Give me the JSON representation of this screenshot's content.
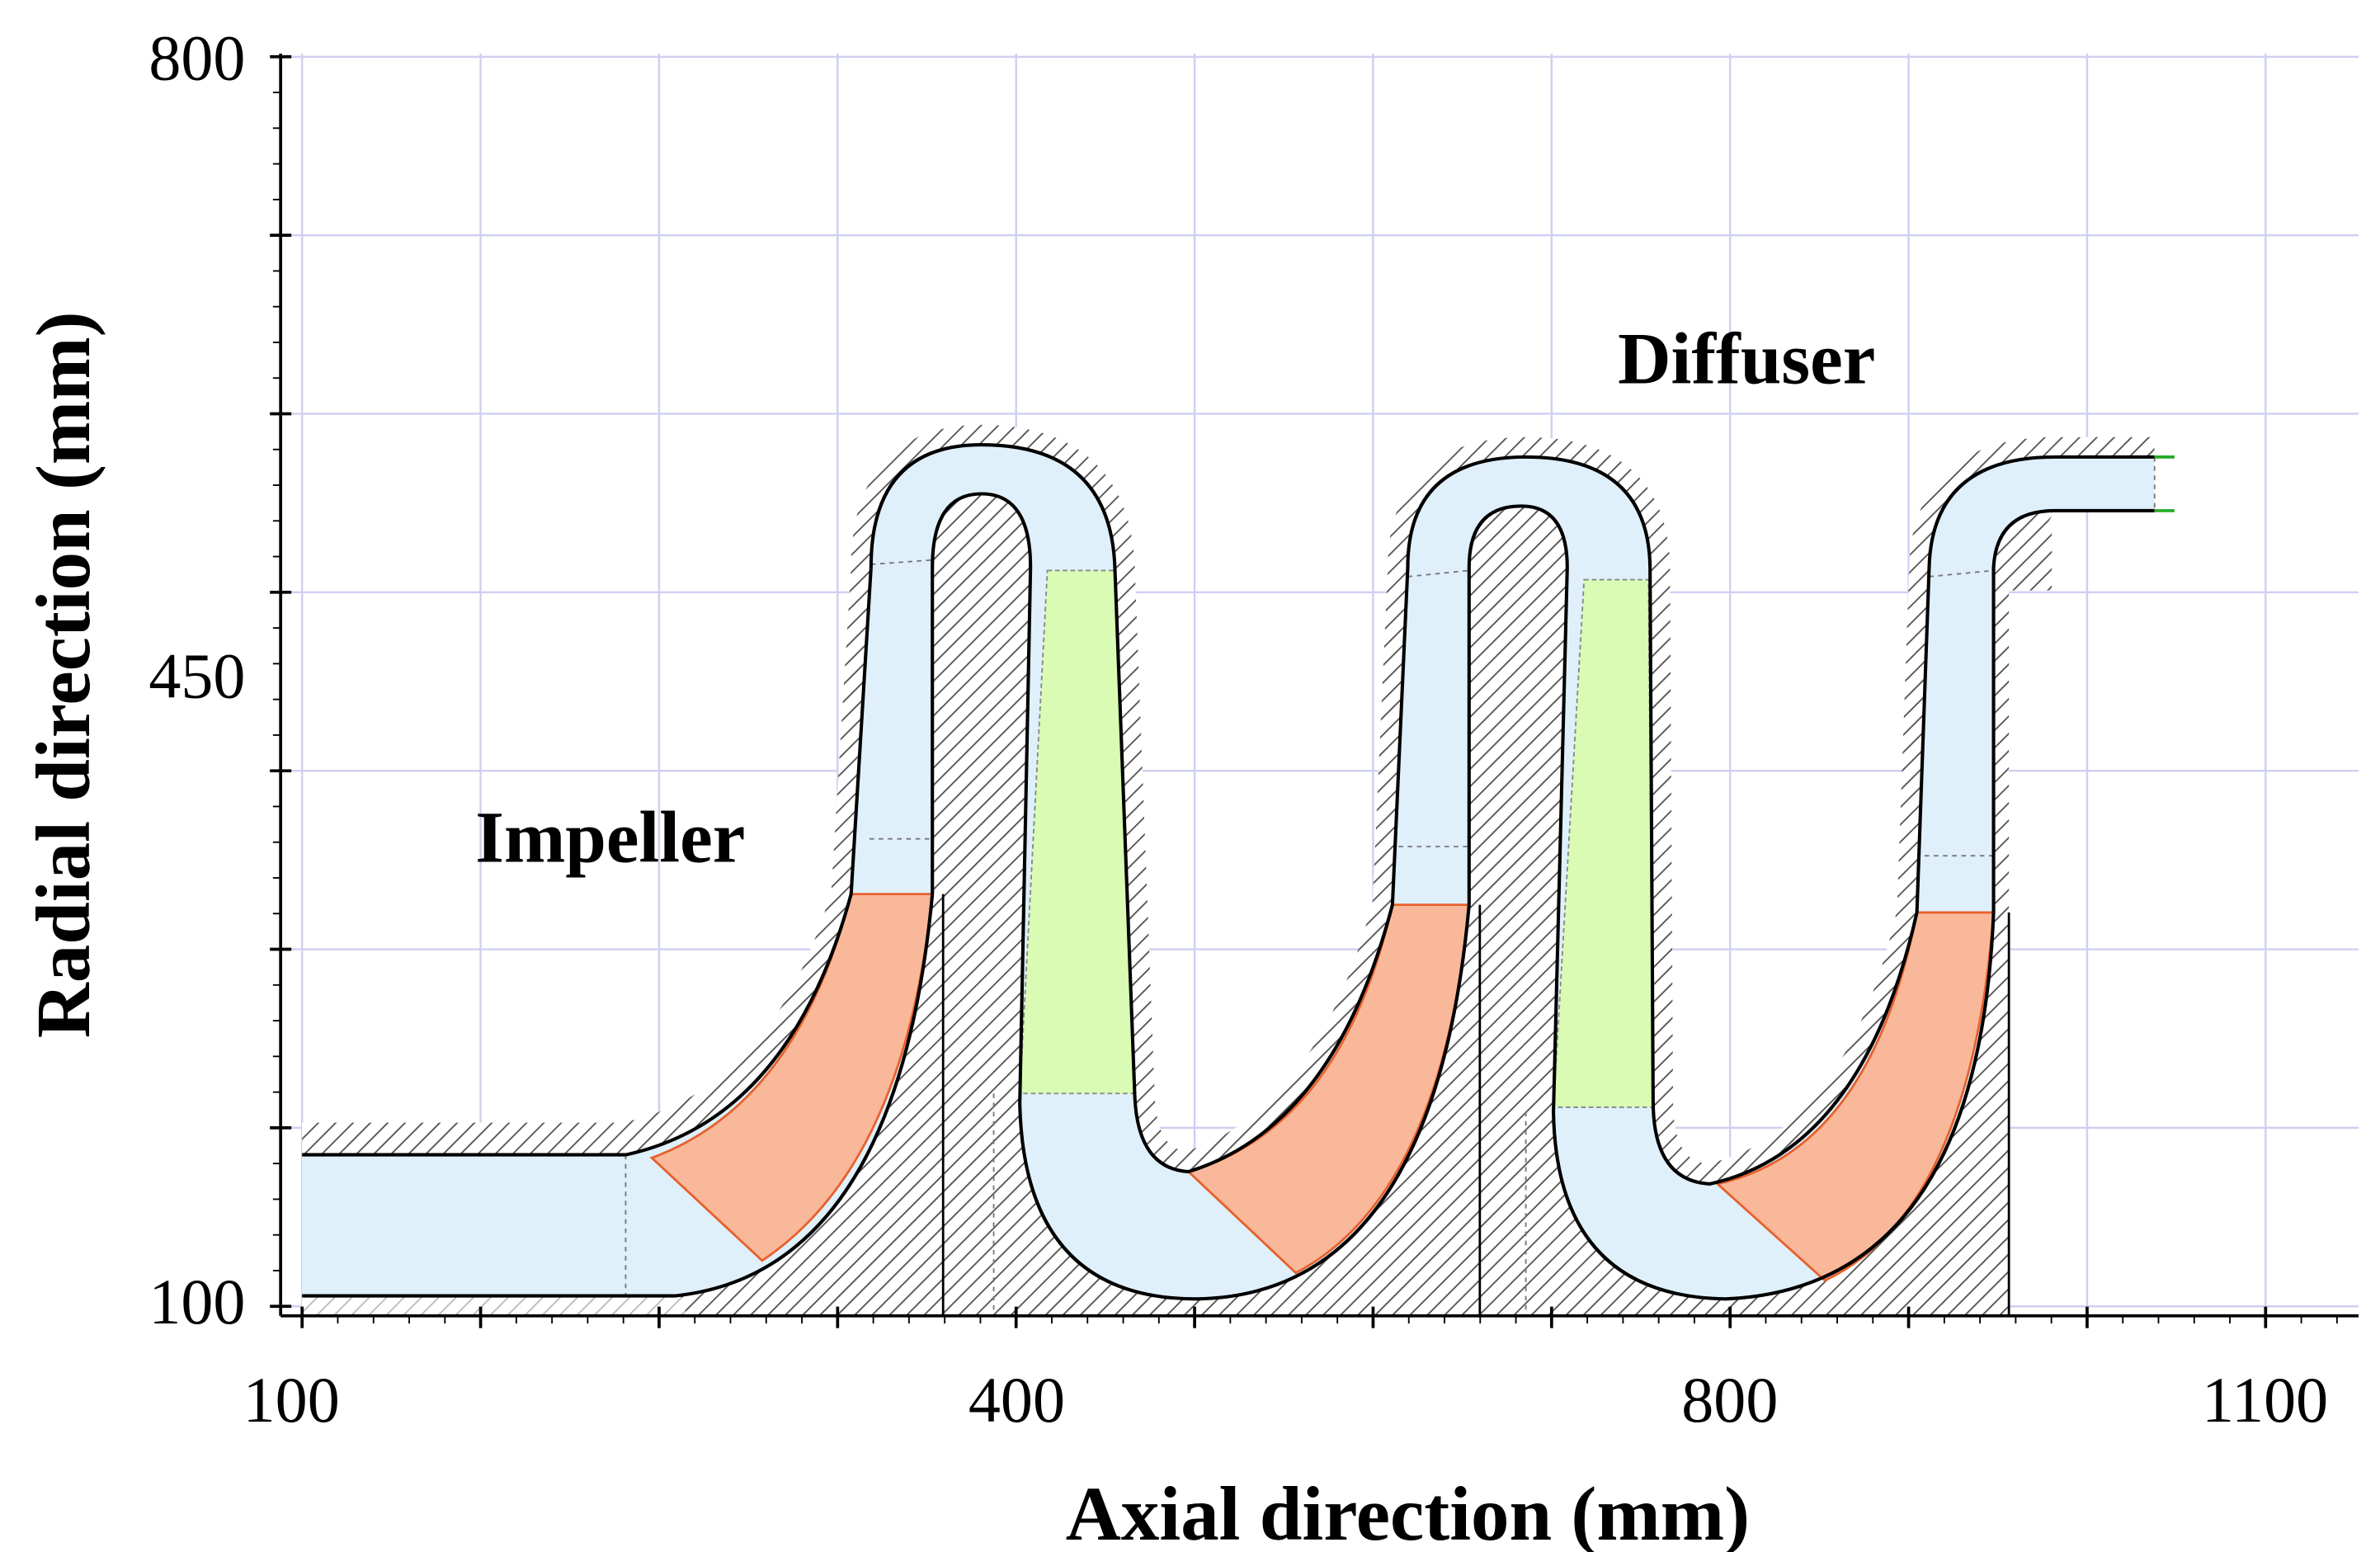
{
  "axis_labels": {
    "x": "Axial direction (mm)",
    "y": "Radial direction (mm)"
  },
  "x_tick_labels": [
    "100",
    "400",
    "800",
    "1100"
  ],
  "y_tick_labels": [
    "800",
    "450",
    "100"
  ],
  "annotations": [
    "Impeller",
    "Diffuser"
  ]
}
